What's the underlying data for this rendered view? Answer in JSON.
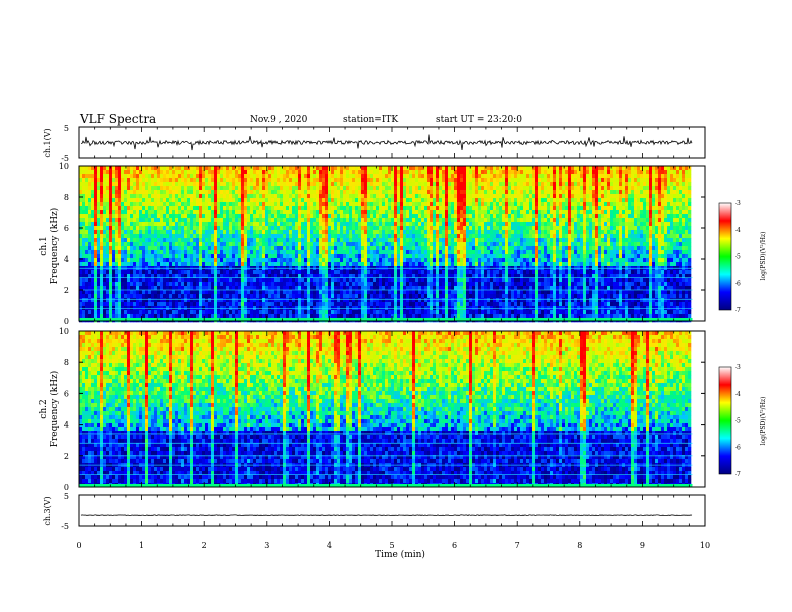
{
  "header": {
    "title": "VLF Spectra",
    "date": "Nov.9 , 2020",
    "station": "station=ITK",
    "start": "start UT = 23:20:0"
  },
  "chart_data": [
    {
      "type": "line",
      "name": "ch1-waveform",
      "ylabel": "ch.1(V)",
      "ylim": [
        -5,
        5
      ],
      "yticks": [
        "5",
        "-5"
      ],
      "baseline": 0,
      "trace_color": "#000000"
    },
    {
      "type": "heatmap",
      "name": "ch1-spectrogram",
      "ylabel_line1": "ch.1",
      "ylabel_line2": "Frequency (kHz)",
      "ylim": [
        0,
        10
      ],
      "yticks": [
        "0",
        "2",
        "4",
        "6",
        "8",
        "10"
      ],
      "colorbar": {
        "label": "log(PSD)(V²/Hz)",
        "ticks": [
          "-3",
          "-4",
          "-5",
          "-6",
          "-7"
        ],
        "range": [
          -7,
          -3
        ],
        "colors": [
          "#000080",
          "#0000ff",
          "#00ffff",
          "#00ff00",
          "#ffff00",
          "#ff0000",
          "#ffffff"
        ]
      }
    },
    {
      "type": "heatmap",
      "name": "ch2-spectrogram",
      "ylabel_line1": "ch.2",
      "ylabel_line2": "Frequency (kHz)",
      "ylim": [
        0,
        10
      ],
      "yticks": [
        "0",
        "2",
        "4",
        "6",
        "8",
        "10"
      ],
      "colorbar": {
        "label": "log(PSD)(V²/Hz)",
        "ticks": [
          "-3",
          "-4",
          "-5",
          "-6",
          "-7"
        ],
        "range": [
          -7,
          -3
        ],
        "colors": [
          "#000080",
          "#0000ff",
          "#00ffff",
          "#00ff00",
          "#ffff00",
          "#ff0000",
          "#ffffff"
        ]
      }
    },
    {
      "type": "line",
      "name": "ch3-waveform",
      "ylabel": "ch.3(V)",
      "ylim": [
        -5,
        5
      ],
      "yticks": [
        "5",
        "-5"
      ],
      "baseline": -1.5,
      "trace_color": "#000000"
    }
  ],
  "xaxis": {
    "label": "Time (min)",
    "range": [
      0,
      10
    ],
    "ticks": [
      "0",
      "1",
      "2",
      "3",
      "4",
      "5",
      "6",
      "7",
      "8",
      "9",
      "10"
    ],
    "data_end": 9.8
  }
}
